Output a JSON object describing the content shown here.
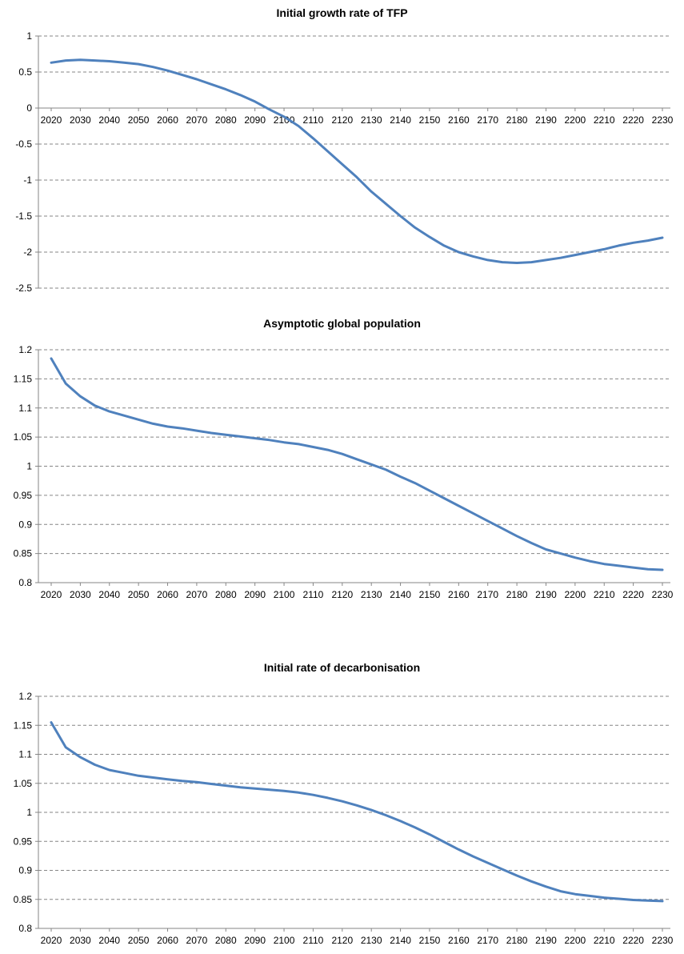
{
  "chart_data": [
    {
      "type": "line",
      "title": "Initial growth rate of TFP",
      "xlabel": "",
      "ylabel": "",
      "xlim": [
        2020,
        2230
      ],
      "ylim": [
        -2.5,
        1
      ],
      "grid": true,
      "x_ticks": [
        "2020",
        "2030",
        "2040",
        "2050",
        "2060",
        "2070",
        "2080",
        "2090",
        "2100",
        "2110",
        "2120",
        "2130",
        "2140",
        "2150",
        "2160",
        "2170",
        "2180",
        "2190",
        "2200",
        "2210",
        "2220",
        "2230"
      ],
      "y_ticks": [
        "1",
        "0.5",
        "0",
        "-0.5",
        "-1",
        "-1.5",
        "-2",
        "-2.5"
      ],
      "y_tick_values": [
        1,
        0.5,
        0,
        -0.5,
        -1,
        -1.5,
        -2,
        -2.5
      ],
      "x_axis_at": 0,
      "color": "#4F81BD",
      "series": [
        {
          "x": [
            2020,
            2025,
            2030,
            2035,
            2040,
            2045,
            2050,
            2055,
            2060,
            2065,
            2070,
            2075,
            2080,
            2085,
            2090,
            2095,
            2100,
            2105,
            2110,
            2115,
            2120,
            2125,
            2130,
            2135,
            2140,
            2145,
            2150,
            2155,
            2160,
            2165,
            2170,
            2175,
            2180,
            2185,
            2190,
            2195,
            2200,
            2205,
            2210,
            2215,
            2220,
            2225,
            2230
          ],
          "y": [
            0.63,
            0.66,
            0.67,
            0.66,
            0.65,
            0.63,
            0.61,
            0.57,
            0.52,
            0.46,
            0.4,
            0.33,
            0.26,
            0.18,
            0.09,
            -0.02,
            -0.12,
            -0.25,
            -0.42,
            -0.6,
            -0.78,
            -0.96,
            -1.16,
            -1.33,
            -1.5,
            -1.66,
            -1.79,
            -1.91,
            -2.0,
            -2.06,
            -2.11,
            -2.14,
            -2.15,
            -2.14,
            -2.11,
            -2.08,
            -2.04,
            -2.0,
            -1.96,
            -1.91,
            -1.87,
            -1.84,
            -1.8
          ]
        }
      ]
    },
    {
      "type": "line",
      "title": "Asymptotic global population",
      "xlabel": "",
      "ylabel": "",
      "xlim": [
        2020,
        2230
      ],
      "ylim": [
        0.8,
        1.2
      ],
      "grid": true,
      "x_ticks": [
        "2020",
        "2030",
        "2040",
        "2050",
        "2060",
        "2070",
        "2080",
        "2090",
        "2100",
        "2110",
        "2120",
        "2130",
        "2140",
        "2150",
        "2160",
        "2170",
        "2180",
        "2190",
        "2200",
        "2210",
        "2220",
        "2230"
      ],
      "y_ticks": [
        "1.2",
        "1.15",
        "1.1",
        "1.05",
        "1",
        "0.95",
        "0.9",
        "0.85",
        "0.8"
      ],
      "y_tick_values": [
        1.2,
        1.15,
        1.1,
        1.05,
        1,
        0.95,
        0.9,
        0.85,
        0.8
      ],
      "x_axis_at": 0.8,
      "color": "#4F81BD",
      "series": [
        {
          "x": [
            2020,
            2025,
            2030,
            2035,
            2040,
            2045,
            2050,
            2055,
            2060,
            2065,
            2070,
            2075,
            2080,
            2085,
            2090,
            2095,
            2100,
            2105,
            2110,
            2115,
            2120,
            2125,
            2130,
            2135,
            2140,
            2145,
            2150,
            2155,
            2160,
            2165,
            2170,
            2175,
            2180,
            2185,
            2190,
            2195,
            2200,
            2205,
            2210,
            2215,
            2220,
            2225,
            2230
          ],
          "y": [
            1.185,
            1.142,
            1.12,
            1.104,
            1.094,
            1.087,
            1.08,
            1.073,
            1.068,
            1.065,
            1.061,
            1.057,
            1.054,
            1.051,
            1.048,
            1.045,
            1.041,
            1.038,
            1.033,
            1.028,
            1.021,
            1.012,
            1.003,
            0.994,
            0.982,
            0.971,
            0.958,
            0.945,
            0.932,
            0.919,
            0.906,
            0.893,
            0.88,
            0.868,
            0.857,
            0.85,
            0.843,
            0.837,
            0.832,
            0.829,
            0.826,
            0.823,
            0.822
          ]
        }
      ]
    },
    {
      "type": "line",
      "title": "Initial rate of decarbonisation",
      "xlabel": "",
      "ylabel": "",
      "xlim": [
        2020,
        2230
      ],
      "ylim": [
        0.8,
        1.2
      ],
      "grid": true,
      "x_ticks": [
        "2020",
        "2030",
        "2040",
        "2050",
        "2060",
        "2070",
        "2080",
        "2090",
        "2100",
        "2110",
        "2120",
        "2130",
        "2140",
        "2150",
        "2160",
        "2170",
        "2180",
        "2190",
        "2200",
        "2210",
        "2220",
        "2230"
      ],
      "y_ticks": [
        "1.2",
        "1.15",
        "1.1",
        "1.05",
        "1",
        "0.95",
        "0.9",
        "0.85",
        "0.8"
      ],
      "y_tick_values": [
        1.2,
        1.15,
        1.1,
        1.05,
        1,
        0.95,
        0.9,
        0.85,
        0.8
      ],
      "x_axis_at": 0.8,
      "color": "#4F81BD",
      "series": [
        {
          "x": [
            2020,
            2025,
            2030,
            2035,
            2040,
            2045,
            2050,
            2055,
            2060,
            2065,
            2070,
            2075,
            2080,
            2085,
            2090,
            2095,
            2100,
            2105,
            2110,
            2115,
            2120,
            2125,
            2130,
            2135,
            2140,
            2145,
            2150,
            2155,
            2160,
            2165,
            2170,
            2175,
            2180,
            2185,
            2190,
            2195,
            2200,
            2205,
            2210,
            2215,
            2220,
            2225,
            2230
          ],
          "y": [
            1.155,
            1.112,
            1.095,
            1.082,
            1.073,
            1.068,
            1.063,
            1.06,
            1.057,
            1.054,
            1.052,
            1.049,
            1.046,
            1.043,
            1.041,
            1.039,
            1.037,
            1.034,
            1.03,
            1.025,
            1.019,
            1.012,
            1.004,
            0.995,
            0.985,
            0.974,
            0.962,
            0.949,
            0.936,
            0.924,
            0.913,
            0.902,
            0.891,
            0.881,
            0.872,
            0.864,
            0.859,
            0.856,
            0.853,
            0.851,
            0.849,
            0.848,
            0.847
          ]
        }
      ]
    }
  ]
}
